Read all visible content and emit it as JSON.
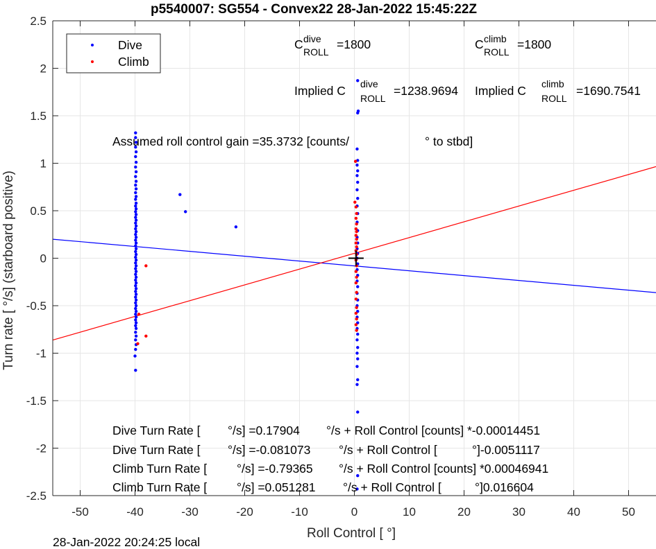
{
  "chart_data": {
    "type": "scatter",
    "title": "p5540007: SG554 - Convex22 28-Jan-2022 15:45:22Z",
    "xlabel": "Roll Control [   °]",
    "ylabel": "Turn rate [   °/s] (starboard positive)",
    "xlim": [
      -55,
      55
    ],
    "ylim": [
      -2.5,
      2.5
    ],
    "x_ticks": [
      "-50",
      "-40",
      "-30",
      "-20",
      "-10",
      "0",
      "10",
      "20",
      "30",
      "40",
      "50"
    ],
    "y_ticks": [
      "2.5",
      "2",
      "1.5",
      "1",
      "0.5",
      "0",
      "-0.5",
      "-1",
      "-1.5",
      "-2",
      "-2.5"
    ],
    "grid": true,
    "legend": {
      "position": "top-left",
      "entries": [
        {
          "label": "Dive",
          "color": "#0000ff"
        },
        {
          "label": "Climb",
          "color": "#ff0000"
        }
      ]
    },
    "annotations": {
      "c_dive_main": "C",
      "c_dive_sup": "dive",
      "c_dive_sub": "ROLL",
      "c_dive_val": "=1800",
      "c_climb_main": "C",
      "c_climb_sup": "climb",
      "c_climb_sub": "ROLL",
      "c_climb_val": "=1800",
      "implied_dive_main": "Implied C",
      "implied_dive_sup": "dive",
      "implied_dive_sub": "ROLL",
      "implied_dive_val": "=1238.9694",
      "implied_climb_main": "Implied C",
      "implied_climb_sup": "climb",
      "implied_climb_sub": "ROLL",
      "implied_climb_val": "=1690.7541",
      "gain_text": "Assumed roll control gain =35.3732 [counts/",
      "gain_unit": "° to stbd]",
      "eq1_a": "Dive Turn Rate [",
      "eq1_b": "°/s] =0.17904",
      "eq1_c": "°/s + Roll Control [counts] *-0.00014451",
      "eq2_a": "Dive Turn Rate [",
      "eq2_b": "°/s] =-0.081073",
      "eq2_c": "°/s + Roll Control [",
      "eq2_d": "°]-0.0051117",
      "eq3_a": "Climb Turn Rate [",
      "eq3_b": "°/s] =-0.79365",
      "eq3_c": "°/s + Roll Control [counts] *0.00046941",
      "eq4_a": "Climb Turn Rate [",
      "eq4_b": "°/s] =0.051281",
      "eq4_c": "°/s + Roll Control [",
      "eq4_d": "°]0.016604"
    },
    "fit_lines": [
      {
        "name": "Dive",
        "color": "#0000ff",
        "intercept": -0.081073,
        "slope": -0.0051117
      },
      {
        "name": "Climb",
        "color": "#ff0000",
        "intercept": 0.051281,
        "slope": 0.016604
      }
    ],
    "center_marker": {
      "x": 0.3,
      "y": 0.0
    },
    "series": [
      {
        "name": "Dive",
        "color": "#0000ff",
        "points": [
          [
            -39.9,
            1.32
          ],
          [
            -39.9,
            1.27
          ],
          [
            -39.8,
            1.22
          ],
          [
            -39.9,
            1.17
          ],
          [
            -39.8,
            1.12
          ],
          [
            -39.9,
            1.07
          ],
          [
            -39.8,
            1.01
          ],
          [
            -39.9,
            0.96
          ],
          [
            -39.8,
            0.91
          ],
          [
            -39.9,
            0.86
          ],
          [
            -39.8,
            0.81
          ],
          [
            -39.9,
            0.77
          ],
          [
            -39.8,
            0.73
          ],
          [
            -39.9,
            0.69
          ],
          [
            -39.8,
            0.65
          ],
          [
            -39.9,
            0.62
          ],
          [
            -39.8,
            0.58
          ],
          [
            -39.9,
            0.55
          ],
          [
            -39.8,
            0.52
          ],
          [
            -39.9,
            0.49
          ],
          [
            -39.8,
            0.46
          ],
          [
            -39.9,
            0.43
          ],
          [
            -39.8,
            0.4
          ],
          [
            -39.9,
            0.37
          ],
          [
            -39.8,
            0.34
          ],
          [
            -39.9,
            0.31
          ],
          [
            -39.8,
            0.28
          ],
          [
            -39.9,
            0.25
          ],
          [
            -39.8,
            0.22
          ],
          [
            -39.9,
            0.19
          ],
          [
            -39.8,
            0.16
          ],
          [
            -39.9,
            0.13
          ],
          [
            -39.8,
            0.1
          ],
          [
            -39.9,
            0.07
          ],
          [
            -39.8,
            0.04
          ],
          [
            -39.9,
            0.01
          ],
          [
            -39.8,
            -0.02
          ],
          [
            -39.9,
            -0.05
          ],
          [
            -39.8,
            -0.08
          ],
          [
            -39.9,
            -0.11
          ],
          [
            -39.8,
            -0.14
          ],
          [
            -39.9,
            -0.17
          ],
          [
            -39.8,
            -0.2
          ],
          [
            -39.9,
            -0.23
          ],
          [
            -39.8,
            -0.26
          ],
          [
            -39.9,
            -0.29
          ],
          [
            -39.8,
            -0.32
          ],
          [
            -39.9,
            -0.35
          ],
          [
            -39.8,
            -0.38
          ],
          [
            -39.9,
            -0.41
          ],
          [
            -39.8,
            -0.44
          ],
          [
            -39.9,
            -0.47
          ],
          [
            -39.8,
            -0.5
          ],
          [
            -39.9,
            -0.53
          ],
          [
            -39.8,
            -0.56
          ],
          [
            -39.9,
            -0.59
          ],
          [
            -39.8,
            -0.62
          ],
          [
            -39.9,
            -0.65
          ],
          [
            -39.8,
            -0.68
          ],
          [
            -39.9,
            -0.71
          ],
          [
            -39.8,
            -0.74
          ],
          [
            -39.9,
            -0.78
          ],
          [
            -39.8,
            -0.82
          ],
          [
            -39.9,
            -0.86
          ],
          [
            -39.8,
            -0.91
          ],
          [
            -39.9,
            -0.96
          ],
          [
            -40.0,
            -1.03
          ],
          [
            -39.9,
            -1.18
          ],
          [
            -31.8,
            0.67
          ],
          [
            -30.8,
            0.49
          ],
          [
            -21.6,
            0.33
          ],
          [
            0.6,
            1.87
          ],
          [
            0.7,
            1.55
          ],
          [
            0.6,
            1.53
          ],
          [
            0.5,
            1.15
          ],
          [
            0.6,
            1.03
          ],
          [
            0.5,
            0.98
          ],
          [
            0.6,
            0.92
          ],
          [
            0.5,
            0.87
          ],
          [
            0.6,
            0.8
          ],
          [
            0.5,
            0.72
          ],
          [
            0.6,
            0.63
          ],
          [
            0.5,
            0.55
          ],
          [
            0.6,
            0.47
          ],
          [
            0.5,
            0.38
          ],
          [
            0.6,
            0.29
          ],
          [
            0.5,
            0.22
          ],
          [
            0.6,
            0.16
          ],
          [
            0.5,
            0.1
          ],
          [
            0.6,
            0.05
          ],
          [
            0.5,
            0.0
          ],
          [
            0.6,
            -0.06
          ],
          [
            0.5,
            -0.12
          ],
          [
            0.6,
            -0.18
          ],
          [
            0.5,
            -0.24
          ],
          [
            0.6,
            -0.3
          ],
          [
            0.5,
            -0.37
          ],
          [
            0.6,
            -0.44
          ],
          [
            0.5,
            -0.5
          ],
          [
            0.6,
            -0.56
          ],
          [
            0.5,
            -0.62
          ],
          [
            0.6,
            -0.68
          ],
          [
            0.5,
            -0.74
          ],
          [
            0.6,
            -0.8
          ],
          [
            0.5,
            -0.86
          ],
          [
            0.6,
            -0.94
          ],
          [
            0.5,
            -1.0
          ],
          [
            0.6,
            -1.06
          ],
          [
            0.5,
            -1.14
          ],
          [
            0.6,
            -1.28
          ],
          [
            0.5,
            -1.33
          ],
          [
            0.6,
            -1.62
          ],
          [
            0.6,
            -2.29
          ],
          [
            0.5,
            -2.43
          ]
        ]
      },
      {
        "name": "Climb",
        "color": "#ff0000",
        "points": [
          [
            -38.0,
            -0.08
          ],
          [
            -39.3,
            -0.59
          ],
          [
            -38.0,
            -0.82
          ],
          [
            -39.5,
            -0.9
          ],
          [
            0.2,
            1.02
          ],
          [
            0.1,
            0.59
          ],
          [
            0.3,
            0.54
          ],
          [
            0.4,
            0.47
          ],
          [
            0.3,
            0.42
          ],
          [
            0.4,
            0.36
          ],
          [
            0.3,
            0.31
          ],
          [
            0.4,
            0.28
          ],
          [
            0.3,
            0.24
          ],
          [
            0.4,
            0.2
          ],
          [
            0.3,
            0.16
          ],
          [
            0.4,
            0.12
          ],
          [
            0.3,
            0.08
          ],
          [
            0.4,
            0.04
          ],
          [
            0.3,
            -0.02
          ],
          [
            0.4,
            -0.08
          ],
          [
            0.3,
            -0.14
          ],
          [
            0.4,
            -0.2
          ],
          [
            0.3,
            -0.26
          ],
          [
            0.4,
            -0.36
          ],
          [
            0.3,
            -0.43
          ],
          [
            0.4,
            -0.52
          ],
          [
            0.3,
            -0.58
          ],
          [
            0.4,
            -0.64
          ],
          [
            0.3,
            -0.7
          ],
          [
            0.4,
            -0.76
          ]
        ]
      }
    ]
  },
  "footer_text": "28-Jan-2022 20:24:25 local"
}
